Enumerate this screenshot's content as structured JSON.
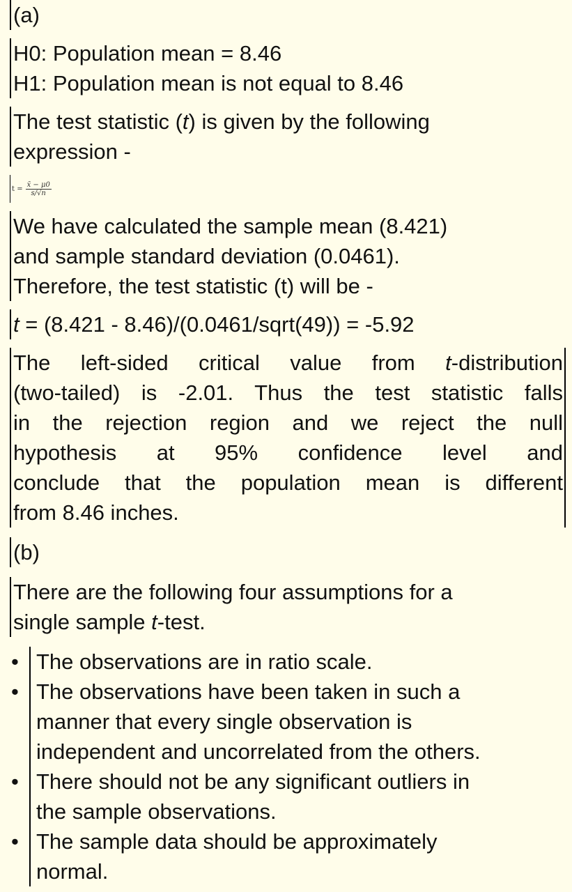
{
  "part_a": {
    "label": "(a)",
    "hypotheses": [
      "H0: Population mean = 8.46",
      "H1: Population mean is not equal to 8.46"
    ],
    "statistic_intro": [
      [
        "The test statistic (",
        {
          "italic": "t"
        },
        ") is given by the following"
      ],
      "expression -"
    ],
    "formula": {
      "lhs": "t =",
      "numerator": "x̄ − μ0",
      "denominator": "s/√n"
    },
    "calculation": [
      "We have calculated the sample mean (8.421)",
      "and sample standard deviation (0.0461).",
      "Therefore, the test statistic (t) will be -"
    ],
    "t_value": [
      [
        {
          "italic": "t"
        },
        " = (8.421 - 8.46)/(0.0461/sqrt(49)) = -5.92"
      ]
    ],
    "conclusion": [
      [
        "The left-sided critical value from ",
        {
          "italic": "t"
        },
        "-distribution"
      ],
      "(two-tailed) is -2.01. Thus the test statistic falls",
      "in the rejection region and we reject the null",
      "hypothesis at 95% confidence level and",
      "conclude that the population mean is different",
      "from 8.46 inches."
    ]
  },
  "part_b": {
    "label": "(b)",
    "intro": [
      "There are the following four assumptions for a",
      [
        "single sample ",
        {
          "italic": "t"
        },
        "-test."
      ]
    ],
    "assumptions": [
      [
        "The observations are in ratio scale."
      ],
      [
        "The observations have been taken in such a",
        "manner that every single observation is",
        "independent and uncorrelated from the others."
      ],
      [
        "There should not be any significant outliers in",
        "the sample observations."
      ],
      [
        "The sample data should be approximately",
        "normal."
      ]
    ]
  }
}
